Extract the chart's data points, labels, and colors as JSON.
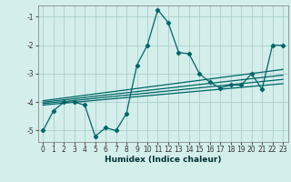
{
  "xlabel": "Humidex (Indice chaleur)",
  "ylabel": "",
  "background_color": "#d4eeec",
  "grid_color": "#aacfcc",
  "line_color": "#006666",
  "xlim": [
    -0.5,
    23.5
  ],
  "ylim": [
    -5.4,
    -0.6
  ],
  "yticks": [
    -5,
    -4,
    -3,
    -2,
    -1
  ],
  "xticks": [
    0,
    1,
    2,
    3,
    4,
    5,
    6,
    7,
    8,
    9,
    10,
    11,
    12,
    13,
    14,
    15,
    16,
    17,
    18,
    19,
    20,
    21,
    22,
    23
  ],
  "series_x": [
    0,
    1,
    2,
    3,
    4,
    5,
    6,
    7,
    8,
    9,
    10,
    11,
    12,
    13,
    14,
    15,
    16,
    17,
    18,
    19,
    20,
    21,
    22,
    23
  ],
  "series_y": [
    -5.0,
    -4.3,
    -4.0,
    -4.0,
    -4.1,
    -5.2,
    -4.9,
    -5.0,
    -4.4,
    -2.7,
    -2.0,
    -0.75,
    -1.2,
    -2.25,
    -2.3,
    -3.0,
    -3.3,
    -3.5,
    -3.4,
    -3.4,
    -3.0,
    -3.55,
    -2.0,
    -2.0
  ],
  "linear_series": [
    {
      "x": [
        0,
        23
      ],
      "y": [
        -3.95,
        -2.85
      ]
    },
    {
      "x": [
        0,
        23
      ],
      "y": [
        -4.0,
        -3.05
      ]
    },
    {
      "x": [
        0,
        23
      ],
      "y": [
        -4.05,
        -3.2
      ]
    },
    {
      "x": [
        0,
        23
      ],
      "y": [
        -4.1,
        -3.35
      ]
    }
  ],
  "tick_fontsize": 5.5,
  "xlabel_fontsize": 6.5,
  "marker": "D",
  "markersize": 2.2,
  "linewidth": 0.9
}
